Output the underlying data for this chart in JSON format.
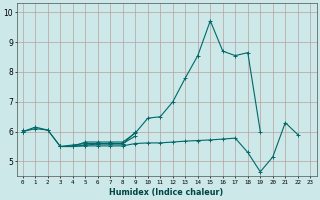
{
  "xlabel": "Humidex (Indice chaleur)",
  "ylabel": "",
  "bg_color": "#cce8e8",
  "grid_color": "#b8a0a0",
  "line_color": "#006868",
  "xlim": [
    -0.5,
    23.5
  ],
  "ylim": [
    4.5,
    10.3
  ],
  "xticks": [
    0,
    1,
    2,
    3,
    4,
    5,
    6,
    7,
    8,
    9,
    10,
    11,
    12,
    13,
    14,
    15,
    16,
    17,
    18,
    19,
    20,
    21,
    22,
    23
  ],
  "yticks": [
    5,
    6,
    7,
    8,
    9,
    10
  ],
  "series": [
    [
      6.0,
      6.1,
      6.05,
      5.5,
      5.5,
      5.65,
      5.65,
      5.65,
      5.65,
      5.95,
      6.45,
      6.5,
      7.0,
      7.8,
      8.55,
      9.72,
      8.7,
      8.55,
      8.65,
      6.0,
      null,
      null,
      null,
      null
    ],
    [
      6.0,
      6.15,
      6.05,
      5.5,
      5.55,
      5.6,
      5.6,
      5.6,
      5.6,
      5.85,
      null,
      null,
      null,
      null,
      null,
      null,
      null,
      null,
      null,
      null,
      null,
      null,
      null,
      null
    ],
    [
      6.0,
      null,
      null,
      5.5,
      5.5,
      5.52,
      5.52,
      5.52,
      5.52,
      5.6,
      5.62,
      5.62,
      5.65,
      5.68,
      5.7,
      5.72,
      5.75,
      5.78,
      5.3,
      4.65,
      5.15,
      6.3,
      5.9,
      null
    ],
    [
      6.05,
      null,
      null,
      5.5,
      5.5,
      5.55,
      5.58,
      5.58,
      5.58,
      5.98,
      null,
      null,
      null,
      null,
      null,
      null,
      null,
      null,
      null,
      null,
      null,
      null,
      null,
      null
    ]
  ]
}
